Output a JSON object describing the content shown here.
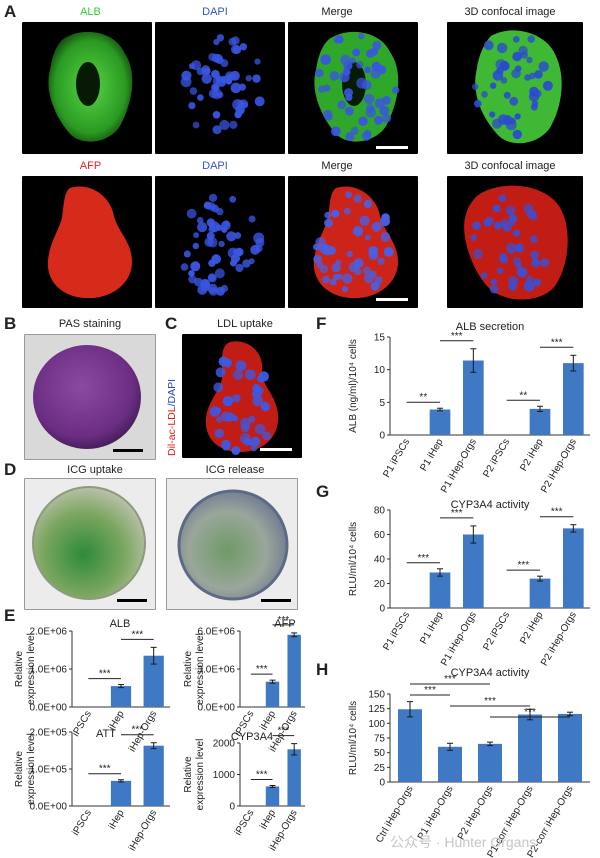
{
  "panel_a": {
    "label": "A",
    "row1_titles": [
      "ALB",
      "DAPI",
      "Merge",
      "3D confocal image"
    ],
    "row2_titles": [
      "AFP",
      "DAPI",
      "Merge",
      "3D confocal image"
    ],
    "title_colors": [
      "#33cc33",
      "#3355cc",
      "#222222",
      "#222222",
      "#ee2222",
      "#3355cc",
      "#222222",
      "#222222"
    ]
  },
  "panel_b": {
    "label": "B",
    "title": "PAS staining"
  },
  "panel_c": {
    "label": "C",
    "title": "LDL uptake",
    "side_label_red": "Dil-ac-LDL",
    "side_label_blue": "/DAPI"
  },
  "panel_d": {
    "label": "D",
    "title_left": "ICG uptake",
    "title_right": "ICG release"
  },
  "panel_e": {
    "label": "E"
  },
  "panel_f": {
    "label": "F"
  },
  "panel_g": {
    "label": "G"
  },
  "panel_h": {
    "label": "H"
  },
  "watermark": "公众号 · Hunter Organs",
  "colors": {
    "bar": "#3f79c4",
    "error": "#1a1a1a"
  },
  "chart_data": [
    {
      "id": "E-ALB",
      "type": "bar",
      "title": "ALB",
      "ylabel": [
        "Relative",
        "expression level"
      ],
      "categories": [
        "iPSCs",
        "iHep",
        "iHep-Orgs"
      ],
      "values": [
        0,
        550000,
        1350000
      ],
      "errors": [
        0,
        40000,
        220000
      ],
      "ylim": [
        0,
        2000000
      ],
      "yticks": [
        0,
        1000000,
        2000000
      ],
      "ytick_labels": [
        "0.0E+00",
        "1.0E+06",
        "2.0E+06"
      ],
      "significance": [
        {
          "from": 0,
          "to": 1,
          "label": "***"
        },
        {
          "from": 1,
          "to": 2,
          "label": "***"
        }
      ]
    },
    {
      "id": "E-AFP",
      "type": "bar",
      "title": "AFP",
      "ylabel": [
        "Relative",
        "expression level"
      ],
      "categories": [
        "iPSCs",
        "iHep",
        "iHep-Orgs"
      ],
      "values": [
        0,
        2000000,
        5700000
      ],
      "errors": [
        0,
        120000,
        150000
      ],
      "ylim": [
        0,
        6000000
      ],
      "yticks": [
        0,
        3000000,
        6000000
      ],
      "ytick_labels": [
        "0.0E+00",
        "3.0E+06",
        "6.0E+06"
      ],
      "significance": [
        {
          "from": 0,
          "to": 1,
          "label": "***"
        },
        {
          "from": 1,
          "to": 2,
          "label": "***"
        }
      ]
    },
    {
      "id": "E-ATT",
      "type": "bar",
      "title": "ATT",
      "ylabel": [
        "Relative",
        "expression level"
      ],
      "categories": [
        "iPSCs",
        "iHep",
        "iHep-Orgs"
      ],
      "values": [
        0,
        68000,
        163000
      ],
      "errors": [
        0,
        3000,
        8000
      ],
      "ylim": [
        0,
        200000
      ],
      "yticks": [
        0,
        100000,
        200000
      ],
      "ytick_labels": [
        "0.0E+00",
        "1.0E+05",
        "2.0E+05"
      ],
      "significance": [
        {
          "from": 0,
          "to": 1,
          "label": "***"
        },
        {
          "from": 1,
          "to": 2,
          "label": "***"
        }
      ]
    },
    {
      "id": "E-CYP3A4",
      "type": "bar",
      "title": "CYP3A4",
      "ylabel": [
        "Relative",
        "expression level"
      ],
      "categories": [
        "iPSCs",
        "iHep",
        "iHep-Orgs"
      ],
      "values": [
        0,
        620,
        1800
      ],
      "errors": [
        0,
        30,
        180
      ],
      "ylim": [
        0,
        2000
      ],
      "yticks": [
        0,
        1000,
        2000
      ],
      "ytick_labels": [
        "0",
        "1000",
        "2000"
      ],
      "significance": [
        {
          "from": 0,
          "to": 1,
          "label": "***"
        },
        {
          "from": 1,
          "to": 2,
          "label": "***"
        }
      ]
    },
    {
      "id": "F",
      "type": "bar",
      "title": "ALB secretion",
      "ylabel": [
        "ALB (ng/ml)/10⁴ cells"
      ],
      "categories": [
        "P1 iPSCs",
        "P1 iHep",
        "P1 iHep-Orgs",
        "P2 iPSCs",
        "P2 iHep",
        "P2 iHep-Orgs"
      ],
      "values": [
        0,
        3.9,
        11.4,
        0,
        4.0,
        11.0
      ],
      "errors": [
        0,
        0.2,
        1.8,
        0,
        0.4,
        1.2
      ],
      "ylim": [
        0,
        15
      ],
      "yticks": [
        0,
        5,
        10,
        15
      ],
      "ytick_labels": [
        "0",
        "5",
        "10",
        "15"
      ],
      "significance": [
        {
          "from": 0,
          "to": 1,
          "label": "**"
        },
        {
          "from": 1,
          "to": 2,
          "label": "***"
        },
        {
          "from": 3,
          "to": 4,
          "label": "**"
        },
        {
          "from": 4,
          "to": 5,
          "label": "***"
        }
      ]
    },
    {
      "id": "G",
      "type": "bar",
      "title": "CYP3A4 activity",
      "ylabel": [
        "RLU/ml/10⁴ cells"
      ],
      "categories": [
        "P1 iPSCs",
        "P1 iHep",
        "P1 iHep-Orgs",
        "P2 iPSCs",
        "P2 iHep",
        "P2 iHep-Orgs"
      ],
      "values": [
        0,
        29,
        60,
        0,
        24,
        65
      ],
      "errors": [
        0,
        3,
        7,
        0,
        2,
        3
      ],
      "ylim": [
        0,
        80
      ],
      "yticks": [
        0,
        20,
        40,
        60,
        80
      ],
      "ytick_labels": [
        "0",
        "20",
        "40",
        "60",
        "80"
      ],
      "significance": [
        {
          "from": 0,
          "to": 1,
          "label": "***"
        },
        {
          "from": 1,
          "to": 2,
          "label": "***"
        },
        {
          "from": 3,
          "to": 4,
          "label": "***"
        },
        {
          "from": 4,
          "to": 5,
          "label": "***"
        }
      ]
    },
    {
      "id": "H",
      "type": "bar",
      "title": "CYP3A4 activity",
      "ylabel": [
        "RLU/ml/10⁴ cells"
      ],
      "categories": [
        "Ctrl iHep-Orgs",
        "P1 iHep-Orgs",
        "P2 iHep-Orgs",
        "P1-corr iHep-Orgs",
        "P2-corr iHep-Orgs"
      ],
      "values": [
        124,
        60,
        65,
        115,
        116
      ],
      "errors": [
        13,
        6,
        3,
        9,
        3
      ],
      "ylim": [
        0,
        150
      ],
      "yticks": [
        0,
        25,
        50,
        75,
        100,
        125,
        150
      ],
      "ytick_labels": [
        "0",
        "25",
        "50",
        "75",
        "100",
        "125",
        "150"
      ],
      "significance": [
        {
          "from": 0,
          "to": 2,
          "label": "***"
        },
        {
          "from": 0,
          "to": 1,
          "label": "***"
        },
        {
          "from": 1,
          "to": 3,
          "label": "***"
        },
        {
          "from": 2,
          "to": 4,
          "label": "***"
        }
      ]
    }
  ]
}
